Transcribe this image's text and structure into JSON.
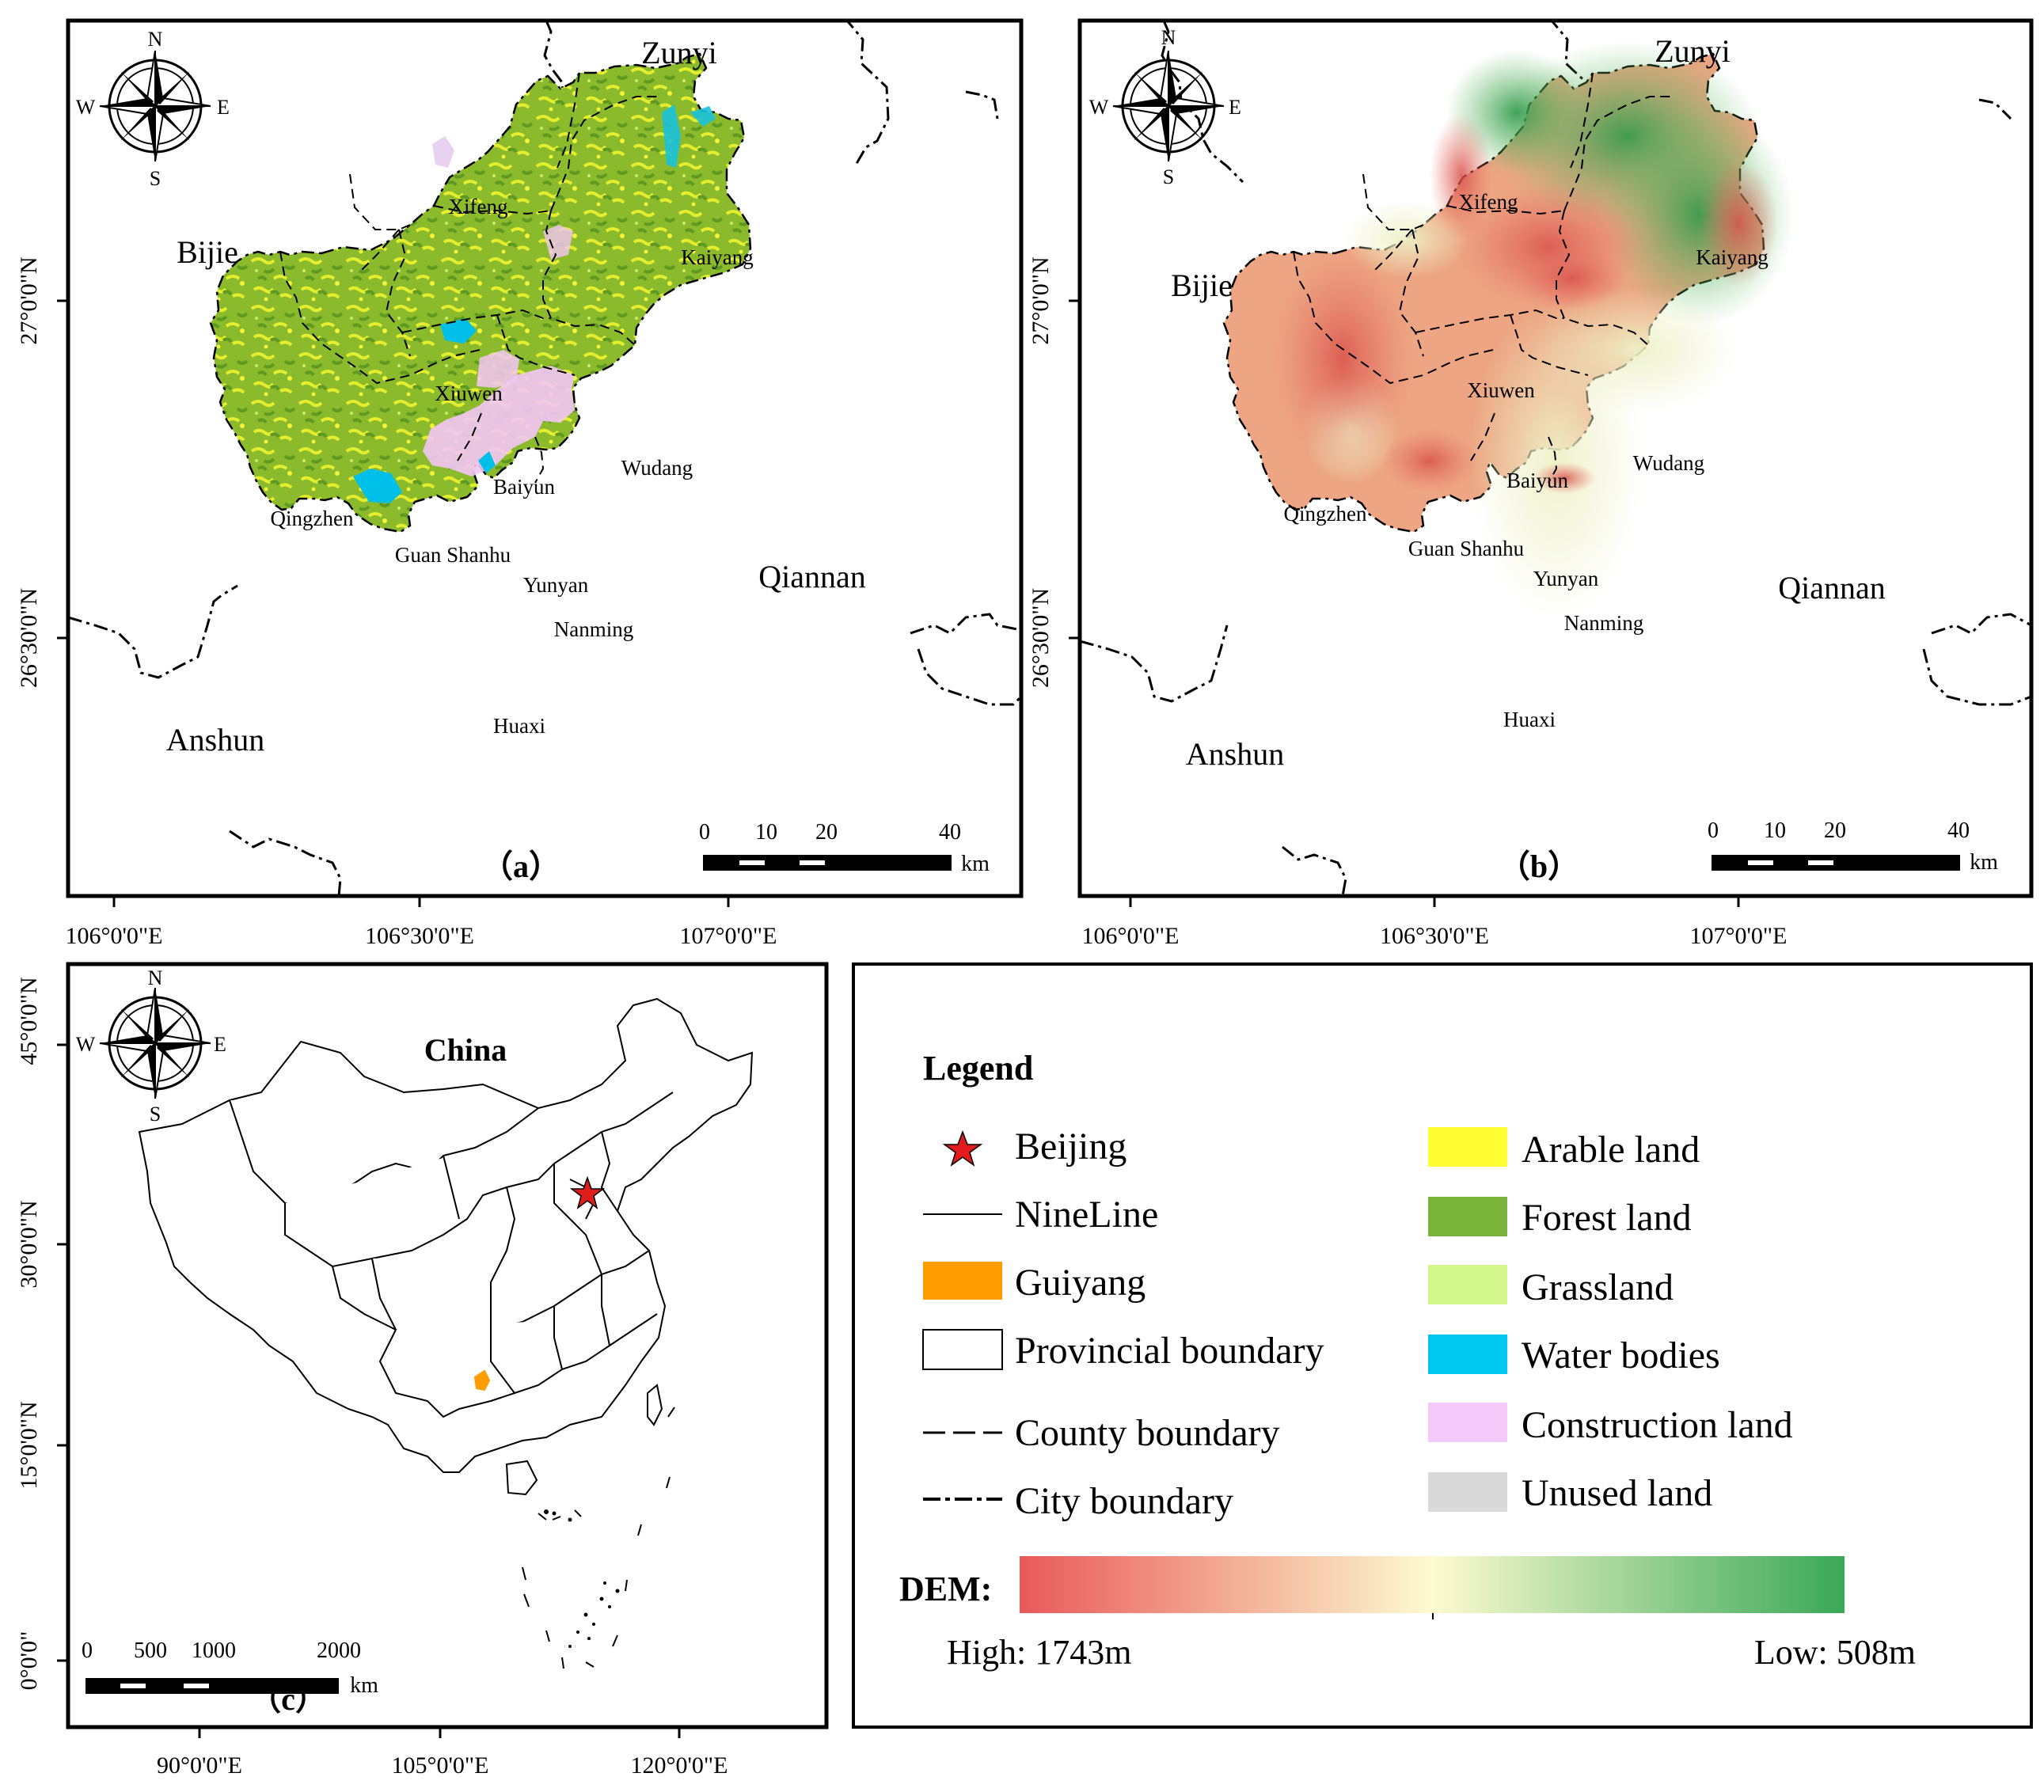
{
  "panel_a": {
    "letter": "（a）",
    "regions": {
      "zunyi": "Zunyi",
      "bijie": "Bijie",
      "anshun": "Anshun",
      "qiannan": "Qiannan"
    },
    "districts": {
      "xifeng": "Xifeng",
      "kaiyang": "Kaiyang",
      "xiuwen": "Xiuwen",
      "wudang": "Wudang",
      "baiyun": "Baiyun",
      "qingzhen": "Qingzhen",
      "guanshanhu": "Guan Shanhu",
      "yunyan": "Yunyan",
      "nanming": "Nanming",
      "huaxi": "Huaxi"
    },
    "scale": {
      "t0": "0",
      "t1": "10",
      "t2": "20",
      "t3": "40",
      "unit": "km"
    },
    "compass": {
      "n": "N",
      "s": "S",
      "w": "W",
      "e": "E"
    },
    "lat": {
      "l1": "27°0'0\"N",
      "l2": "26°30'0\"N"
    },
    "lon": {
      "l1": "106°0'0\"E",
      "l2": "106°30'0\"E",
      "l3": "107°0'0\"E"
    }
  },
  "panel_b": {
    "letter": "（b）",
    "regions": {
      "zunyi": "Zunyi",
      "bijie": "Bijie",
      "anshun": "Anshun",
      "qiannan": "Qiannan"
    },
    "districts": {
      "xifeng": "Xifeng",
      "kaiyang": "Kaiyang",
      "xiuwen": "Xiuwen",
      "wudang": "Wudang",
      "baiyun": "Baiyun",
      "qingzhen": "Qingzhen",
      "guanshanhu": "Guan Shanhu",
      "yunyan": "Yunyan",
      "nanming": "Nanming",
      "huaxi": "Huaxi"
    },
    "scale": {
      "t0": "0",
      "t1": "10",
      "t2": "20",
      "t3": "40",
      "unit": "km"
    },
    "compass": {
      "n": "N",
      "s": "S",
      "w": "W",
      "e": "E"
    },
    "lat": {
      "l1": "27°0'0\"N",
      "l2": "26°30'0\"N"
    },
    "lon": {
      "l1": "106°0'0\"E",
      "l2": "106°30'0\"E",
      "l3": "107°0'0\"E"
    }
  },
  "panel_c": {
    "letter": "（c）",
    "title": "China",
    "scale": {
      "t0": "0",
      "t1": "500",
      "t2": "1000",
      "t3": "2000",
      "unit": "km"
    },
    "compass": {
      "n": "N",
      "s": "S",
      "w": "W",
      "e": "E"
    },
    "lat": {
      "l1": "45°0'0\"N",
      "l2": "30°0'0\"N",
      "l3": "15°0'0\"N",
      "l4": "0°0'0\""
    },
    "lon": {
      "l1": "90°0'0\"E",
      "l2": "105°0'0\"E",
      "l3": "120°0'0\"E"
    }
  },
  "legend": {
    "title": "Legend",
    "items_left": [
      {
        "label": "Beijing",
        "symbol": "red-star-icon"
      },
      {
        "label": "NineLine",
        "symbol": "thin-line"
      },
      {
        "label": "Guiyang",
        "symbol": "orange-fill"
      },
      {
        "label": "Provincial boundary",
        "symbol": "hollow-box"
      },
      {
        "label": "County boundary",
        "symbol": "dashed-line"
      },
      {
        "label": "City boundary",
        "symbol": "dash-dot-line"
      }
    ],
    "items_right": [
      {
        "label": "Arable land",
        "color": "#ffff33"
      },
      {
        "label": "Forest land",
        "color": "#7ab33a"
      },
      {
        "label": "Grassland",
        "color": "#d2f58c"
      },
      {
        "label": "Water bodies",
        "color": "#00c8f0"
      },
      {
        "label": "Construction land",
        "color": "#f5c8fa"
      },
      {
        "label": "Unused land",
        "color": "#d9d9d9"
      }
    ],
    "dem": {
      "label": "DEM:",
      "high": "High: 1743m",
      "low": "Low: 508m",
      "color_high": "#e8595a",
      "color_mid": "#fdfbd0",
      "color_low": "#3aa857"
    }
  }
}
